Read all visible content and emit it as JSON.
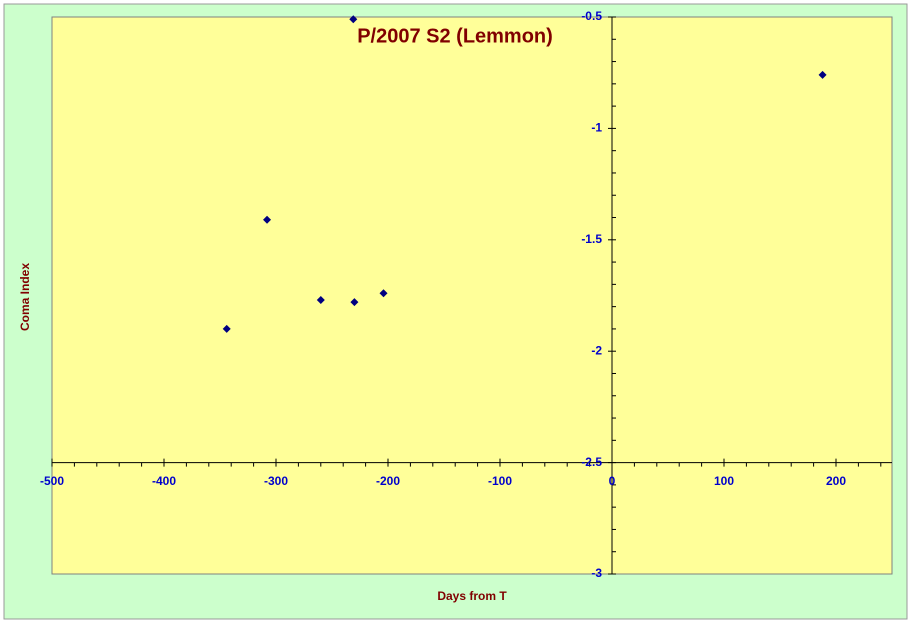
{
  "chart_data": {
    "type": "scatter",
    "title": "P/2007 S2 (Lemmon)",
    "x_label": "Days from T",
    "y_label": "Coma Index",
    "series": [
      {
        "name": "Coma Index",
        "color": "#000080",
        "x": [
          -344,
          -308,
          -260,
          -230,
          -204,
          -231,
          188
        ],
        "values": [
          -1.9,
          -1.41,
          -1.77,
          -1.78,
          -1.74,
          -0.51,
          -0.76
        ]
      }
    ],
    "xlim": [
      -500,
      250
    ],
    "xticks": [
      -500,
      -400,
      -300,
      -200,
      -100,
      0,
      100,
      200
    ],
    "ylim": [
      -3,
      -0.5
    ],
    "yticks": [
      -0.5,
      -1,
      -1.5,
      -2,
      -2.5,
      -3
    ],
    "x_axis_crosses_at": -2.5,
    "grid": false
  }
}
